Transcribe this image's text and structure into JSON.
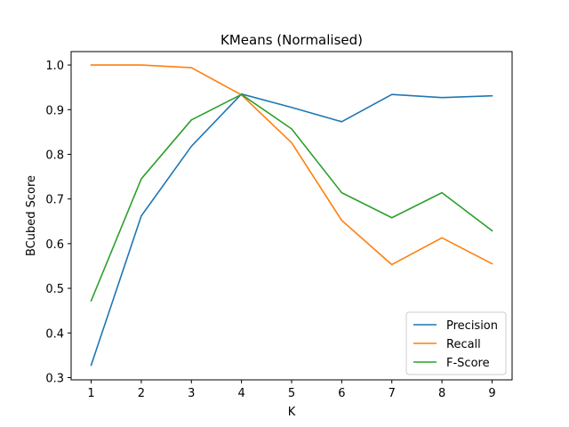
{
  "chart_data": {
    "type": "line",
    "title": "KMeans (Normalised)",
    "xlabel": "K",
    "ylabel": "BCubed Score",
    "x": [
      1,
      2,
      3,
      4,
      5,
      6,
      7,
      8,
      9
    ],
    "xlim": [
      0.6,
      9.4
    ],
    "ylim": [
      0.295,
      1.03
    ],
    "xticks": [
      1,
      2,
      3,
      4,
      5,
      6,
      7,
      8,
      9
    ],
    "yticks": [
      0.3,
      0.4,
      0.5,
      0.6,
      0.7,
      0.8,
      0.9,
      1.0
    ],
    "ytick_labels": [
      "0.3",
      "0.4",
      "0.5",
      "0.6",
      "0.7",
      "0.8",
      "0.9",
      "1.0"
    ],
    "grid": false,
    "legend_position": "lower-right",
    "series": [
      {
        "name": "Precision",
        "color": "#1f77b4",
        "values": [
          0.328,
          0.662,
          0.818,
          0.935,
          0.905,
          0.873,
          0.934,
          0.927,
          0.931
        ]
      },
      {
        "name": "Recall",
        "color": "#ff7f0e",
        "values": [
          1.0,
          1.0,
          0.994,
          0.933,
          0.826,
          0.652,
          0.553,
          0.613,
          0.555
        ]
      },
      {
        "name": "F-Score",
        "color": "#2ca02c",
        "values": [
          0.472,
          0.745,
          0.877,
          0.934,
          0.857,
          0.714,
          0.658,
          0.714,
          0.629
        ]
      }
    ]
  }
}
